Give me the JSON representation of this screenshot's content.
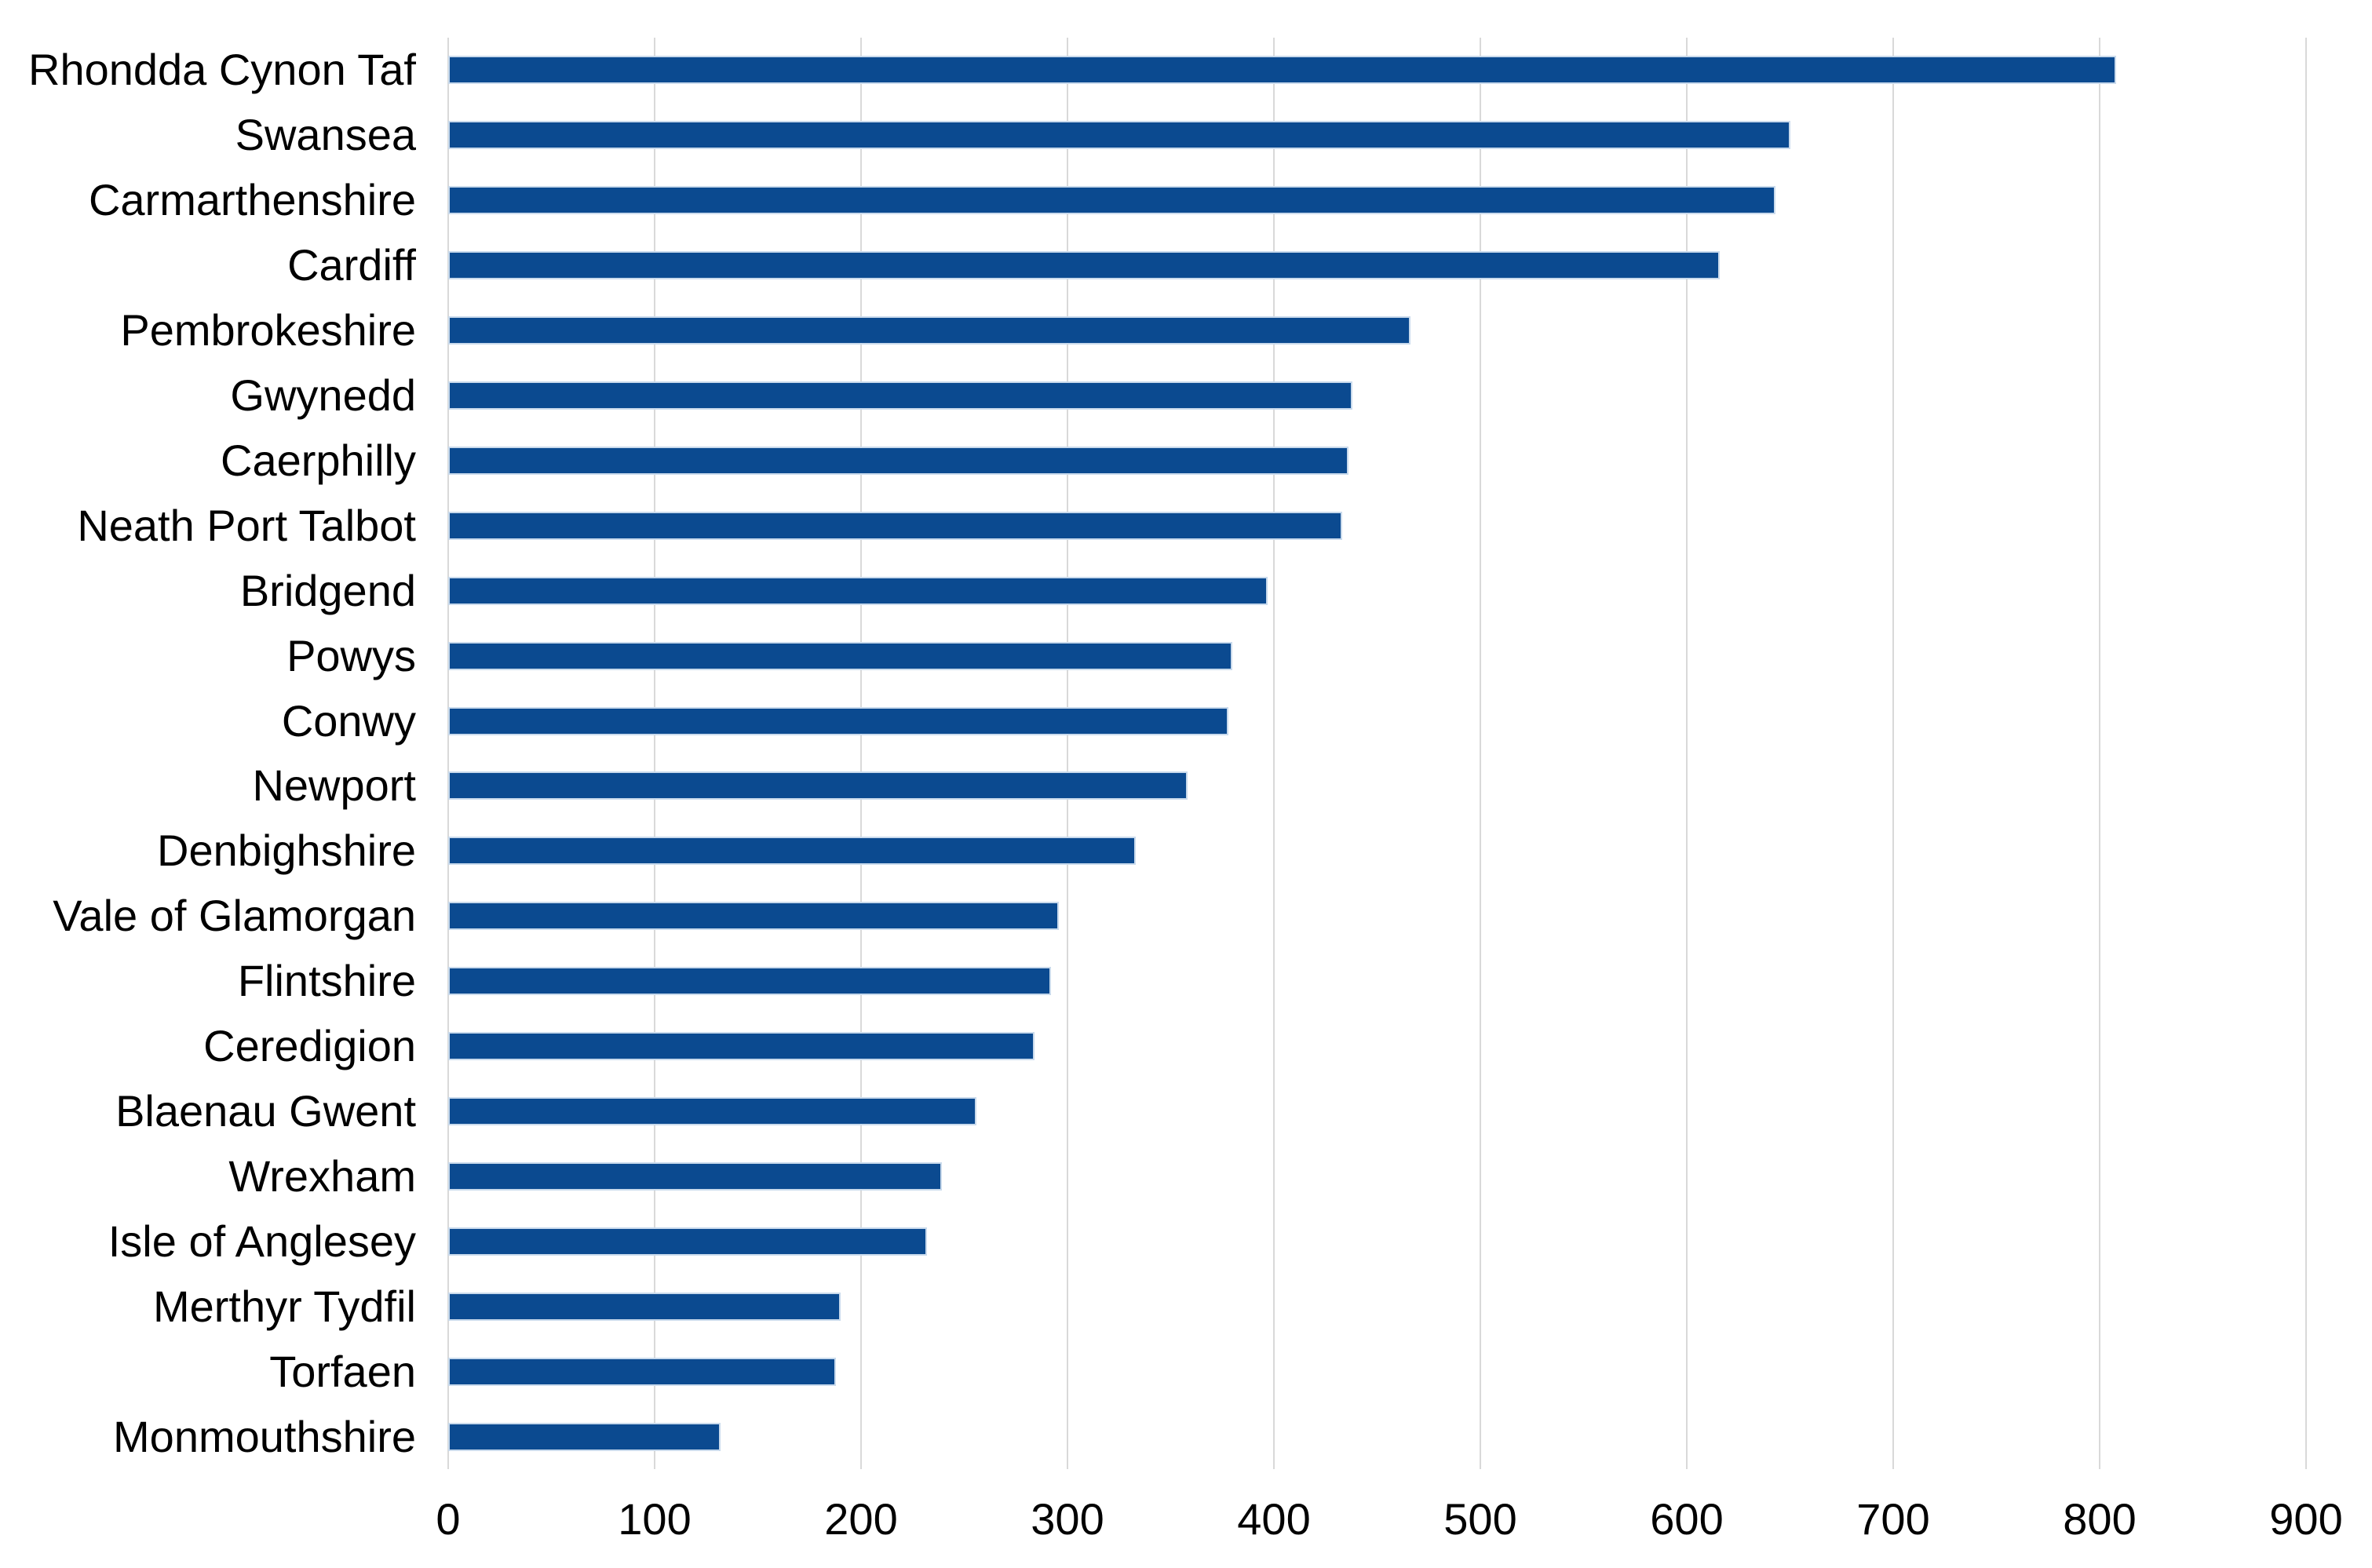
{
  "chart_data": {
    "type": "bar",
    "orientation": "horizontal",
    "title": "",
    "xlabel": "",
    "ylabel": "",
    "categories": [
      "Rhondda Cynon Taf",
      "Swansea",
      "Carmarthenshire",
      "Cardiff",
      "Pembrokeshire",
      "Gwynedd",
      "Caerphilly",
      "Neath Port Talbot",
      "Bridgend",
      "Powys",
      "Conwy",
      "Newport",
      "Denbighshire",
      "Vale of Glamorgan",
      "Flintshire",
      "Ceredigion",
      "Blaenau Gwent",
      "Wrexham",
      "Isle of Anglesey",
      "Merthyr Tydfil",
      "Torfaen",
      "Monmouthshire"
    ],
    "values": [
      808,
      650,
      643,
      616,
      466,
      438,
      436,
      433,
      397,
      380,
      378,
      358,
      333,
      296,
      292,
      284,
      256,
      239,
      232,
      190,
      188,
      132
    ],
    "xlim": [
      0,
      900
    ],
    "xticks": [
      0,
      100,
      200,
      300,
      400,
      500,
      600,
      700,
      800,
      900
    ],
    "grid": "vertical",
    "legend": "none",
    "bar_color": "#0b4a90",
    "bar_edge_color": "#c9daec",
    "gridline_color": "#d9d9d9",
    "text_color": "#000000",
    "background_color": "#ffffff"
  }
}
